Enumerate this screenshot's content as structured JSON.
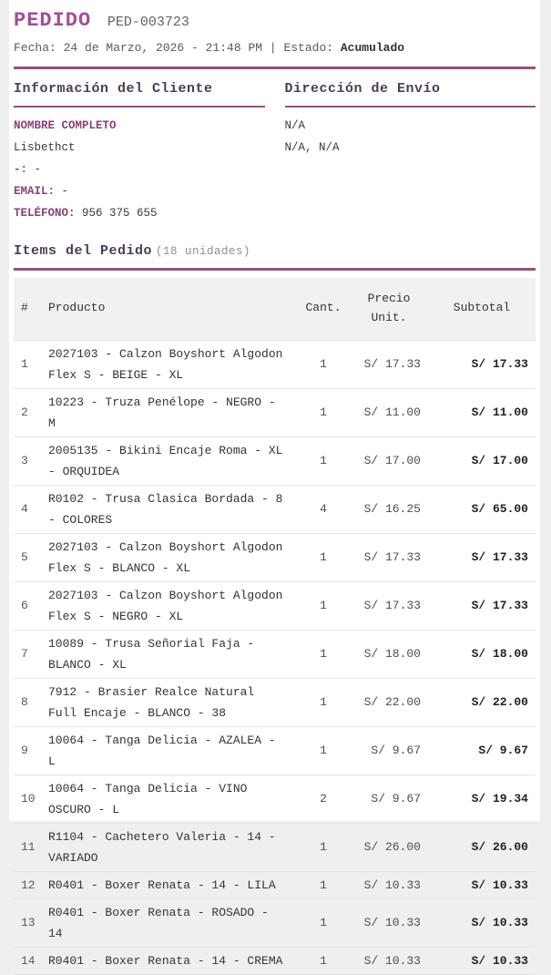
{
  "colors": {
    "accent": "#96507e",
    "title": "#a14e9a",
    "heading": "#4d3c56",
    "label_purple": "#8a4179",
    "table_header_bg": "#f1f1f3"
  },
  "header": {
    "title": "PEDIDO",
    "order_number": "PED-003723",
    "meta_prefix": "Fecha: 24 de Marzo, 2026 - 21:48 PM | Estado: ",
    "status": "Acumulado"
  },
  "customer": {
    "heading": "Información del Cliente",
    "name_label": "NOMBRE COMPLETO",
    "name_value": "Lisbethct",
    "doc_label": "-:",
    "doc_value": "-",
    "email_label": "EMAIL:",
    "email_value": "-",
    "phone_label": "TELÉFONO:",
    "phone_value": "956 375 655"
  },
  "shipping": {
    "heading": "Dirección de Envío",
    "line1": "N/A",
    "line2": "N/A, N/A"
  },
  "items": {
    "heading": "Items del Pedido",
    "units_note": "(18 unidades)",
    "columns": [
      "#",
      "Producto",
      "Cant.",
      "Precio Unit.",
      "Subtotal"
    ],
    "rows": [
      {
        "n": "1",
        "product": "2027103 - Calzon Boyshort Algodon Flex S - BEIGE - XL",
        "qty": "1",
        "unit_price": "S/ 17.33",
        "subtotal": "S/ 17.33"
      },
      {
        "n": "2",
        "product": "10223 - Truza Penélope - NEGRO - M",
        "qty": "1",
        "unit_price": "S/ 11.00",
        "subtotal": "S/ 11.00"
      },
      {
        "n": "3",
        "product": "2005135 - Bikini Encaje Roma - XL - ORQUIDEA",
        "qty": "1",
        "unit_price": "S/ 17.00",
        "subtotal": "S/ 17.00"
      },
      {
        "n": "4",
        "product": "R0102 - Trusa Clasica Bordada - 8 - COLORES",
        "qty": "4",
        "unit_price": "S/ 16.25",
        "subtotal": "S/ 65.00"
      },
      {
        "n": "5",
        "product": "2027103 - Calzon Boyshort Algodon Flex S - BLANCO - XL",
        "qty": "1",
        "unit_price": "S/ 17.33",
        "subtotal": "S/ 17.33"
      },
      {
        "n": "6",
        "product": "2027103 - Calzon Boyshort Algodon Flex S - NEGRO - XL",
        "qty": "1",
        "unit_price": "S/ 17.33",
        "subtotal": "S/ 17.33"
      },
      {
        "n": "7",
        "product": "10089 - Trusa Señorial Faja - BLANCO - XL",
        "qty": "1",
        "unit_price": "S/ 18.00",
        "subtotal": "S/ 18.00"
      },
      {
        "n": "8",
        "product": "7912 - Brasier Realce Natural Full Encaje - BLANCO - 38",
        "qty": "1",
        "unit_price": "S/ 22.00",
        "subtotal": "S/ 22.00"
      },
      {
        "n": "9",
        "product": "10064 - Tanga Delicia - AZALEA - L",
        "qty": "1",
        "unit_price": "S/ 9.67",
        "subtotal": "S/ 9.67"
      },
      {
        "n": "10",
        "product": "10064 - Tanga Delicia - VINO OSCURO - L",
        "qty": "2",
        "unit_price": "S/ 9.67",
        "subtotal": "S/ 19.34"
      },
      {
        "n": "11",
        "product": "R1104 - Cachetero Valeria - 14 - VARIADO",
        "qty": "1",
        "unit_price": "S/ 26.00",
        "subtotal": "S/ 26.00"
      },
      {
        "n": "12",
        "product": "R0401 - Boxer Renata - 14 - LILA",
        "qty": "1",
        "unit_price": "S/ 10.33",
        "subtotal": "S/ 10.33"
      },
      {
        "n": "13",
        "product": "R0401 - Boxer Renata - ROSADO - 14",
        "qty": "1",
        "unit_price": "S/ 10.33",
        "subtotal": "S/ 10.33"
      },
      {
        "n": "14",
        "product": "R0401 - Boxer Renata - 14 - CREMA",
        "qty": "1",
        "unit_price": "S/ 10.33",
        "subtotal": "S/ 10.33"
      }
    ]
  }
}
